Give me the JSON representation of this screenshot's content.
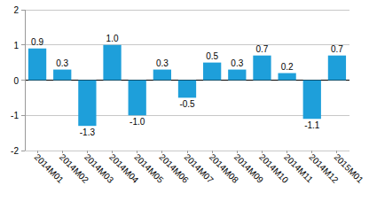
{
  "chart_data": {
    "type": "bar",
    "categories": [
      "2014M01",
      "2014M02",
      "2014M03",
      "2014M04",
      "2014M05",
      "2014M06",
      "2014M07",
      "2014M08",
      "2014M09",
      "2014M10",
      "2014M11",
      "2014M12",
      "2015M01"
    ],
    "values": [
      0.9,
      0.3,
      -1.3,
      1.0,
      -1.0,
      0.3,
      -0.5,
      0.5,
      0.3,
      0.7,
      0.2,
      -1.1,
      0.7
    ],
    "value_labels": [
      "0.9",
      "0.3",
      "-1.3",
      "1.0",
      "-1.0",
      "0.3",
      "-0.5",
      "0.5",
      "0.3",
      "0.7",
      "0.2",
      "-1.1",
      "0.7"
    ],
    "color": "#1e9fda",
    "ylim": [
      -2,
      2
    ],
    "yticks": [
      -2,
      -1,
      0,
      1,
      2
    ],
    "grid": true,
    "data_labels": true
  }
}
